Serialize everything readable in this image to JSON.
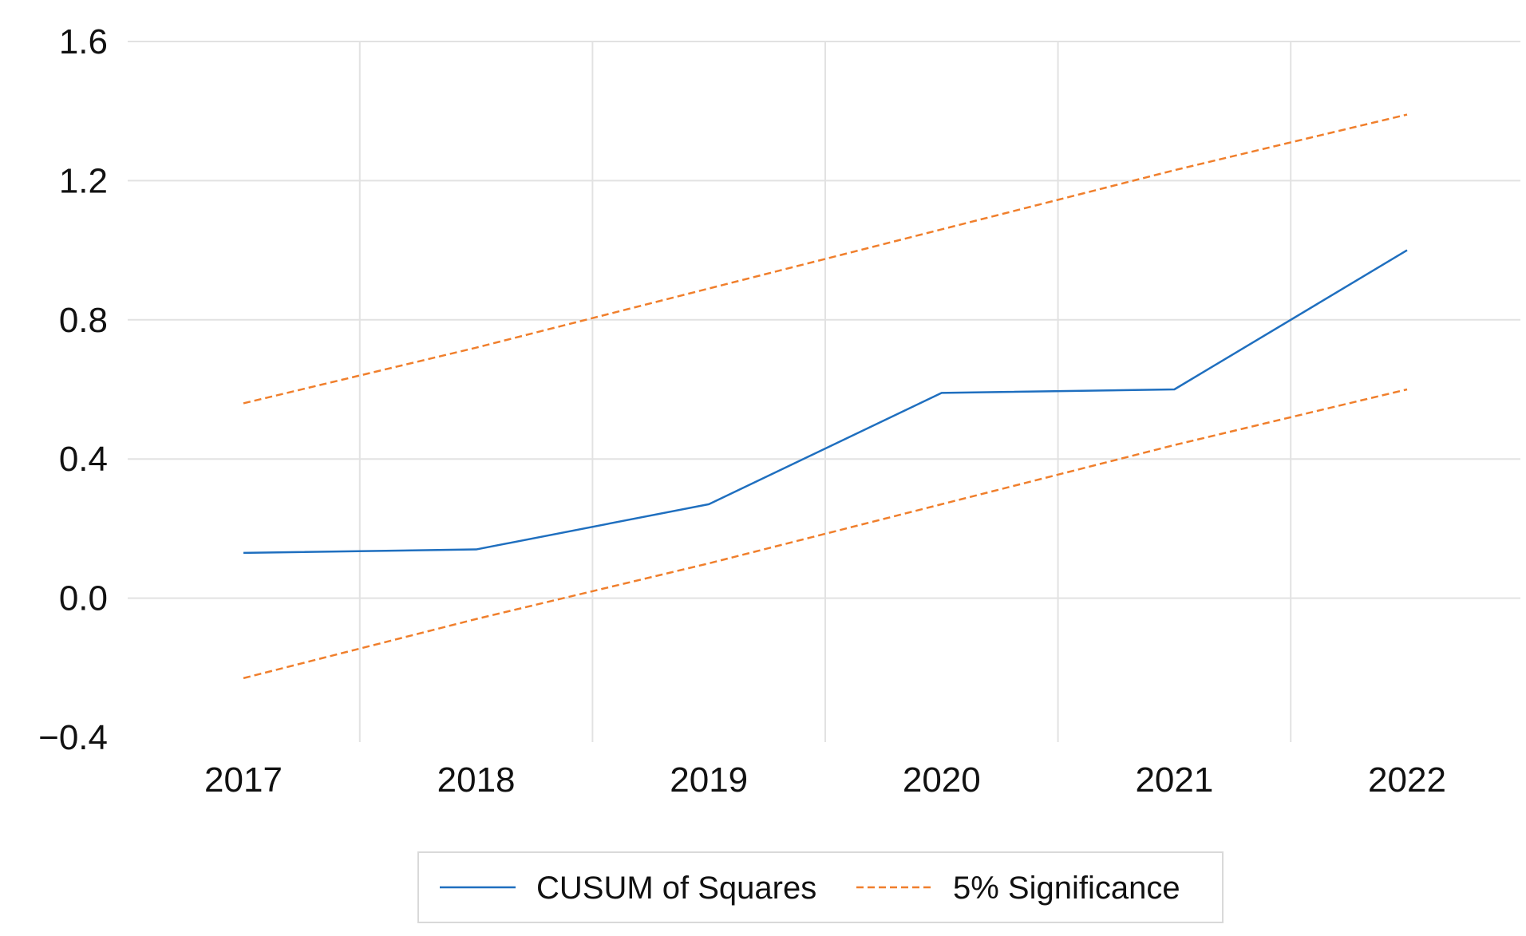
{
  "chart_data": {
    "type": "line",
    "title": "",
    "xlabel": "",
    "ylabel": "",
    "categories": [
      "2017",
      "2018",
      "2019",
      "2020",
      "2021",
      "2022"
    ],
    "y_ticks": [
      "1.6",
      "1.2",
      "0.8",
      "0.4",
      "0.0",
      "−0.4"
    ],
    "y_tick_values": [
      1.6,
      1.2,
      0.8,
      0.4,
      0.0,
      -0.4
    ],
    "ylim": [
      -0.4,
      1.6
    ],
    "grid": true,
    "legend_position": "bottom",
    "series": [
      {
        "name": "CUSUM of Squares",
        "color": "#1f6fbf",
        "style": "solid",
        "values": [
          0.13,
          0.14,
          0.27,
          0.59,
          0.6,
          1.0
        ]
      },
      {
        "name": "5% Significance",
        "color": "#f07f2c",
        "style": "dashed",
        "values": [
          0.56,
          0.72,
          0.89,
          1.06,
          1.23,
          1.39
        ]
      },
      {
        "name": "5% Significance",
        "color": "#f07f2c",
        "style": "dashed",
        "values": [
          -0.23,
          -0.06,
          0.1,
          0.27,
          0.44,
          0.6
        ]
      }
    ],
    "legend": {
      "solid_label": "CUSUM of Squares",
      "dashed_label": "5% Significance"
    }
  }
}
